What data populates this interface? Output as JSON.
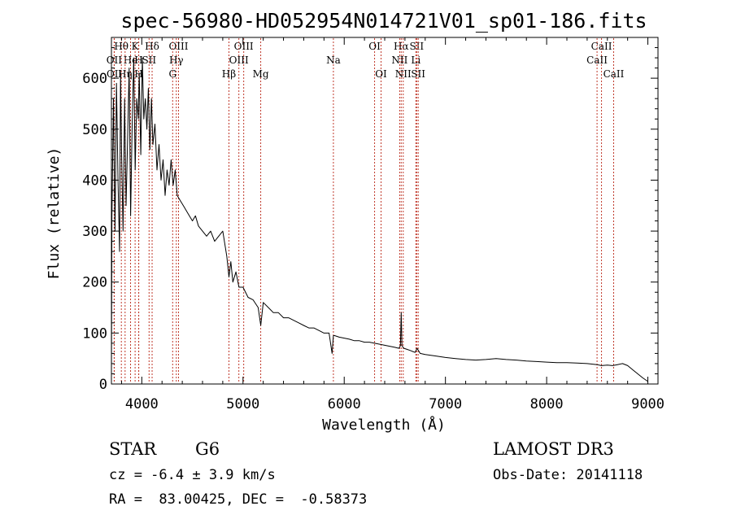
{
  "chart_data": {
    "type": "line",
    "title": "spec-56980-HD052954N014721V01_sp01-186.fits",
    "xlabel": "Wavelength (Å)",
    "ylabel": "Flux (relative)",
    "xlim": [
      3700,
      9100
    ],
    "ylim": [
      0,
      680
    ],
    "grid": false,
    "x_ticks": [
      {
        "value": 4000,
        "label": "4000"
      },
      {
        "value": 5000,
        "label": "5000"
      },
      {
        "value": 6000,
        "label": "6000"
      },
      {
        "value": 7000,
        "label": "7000"
      },
      {
        "value": 8000,
        "label": "8000"
      },
      {
        "value": 9000,
        "label": "9000"
      }
    ],
    "y_ticks": [
      {
        "value": 0,
        "label": "0"
      },
      {
        "value": 100,
        "label": "100"
      },
      {
        "value": 200,
        "label": "200"
      },
      {
        "value": 300,
        "label": "300"
      },
      {
        "value": 400,
        "label": "400"
      },
      {
        "value": 500,
        "label": "500"
      },
      {
        "value": 600,
        "label": "600"
      }
    ],
    "series": [
      {
        "name": "spectrum",
        "x": [
          3700,
          3705,
          3720,
          3735,
          3750,
          3765,
          3780,
          3790,
          3800,
          3815,
          3830,
          3845,
          3860,
          3875,
          3890,
          3905,
          3920,
          3935,
          3950,
          3965,
          3975,
          3990,
          4005,
          4020,
          4035,
          4050,
          4065,
          4080,
          4095,
          4110,
          4130,
          4150,
          4170,
          4190,
          4210,
          4230,
          4250,
          4270,
          4290,
          4310,
          4330,
          4350,
          4380,
          4410,
          4440,
          4470,
          4500,
          4530,
          4560,
          4600,
          4640,
          4680,
          4720,
          4760,
          4800,
          4840,
          4861,
          4880,
          4900,
          4930,
          4960,
          5000,
          5050,
          5100,
          5150,
          5175,
          5200,
          5250,
          5300,
          5350,
          5400,
          5450,
          5500,
          5550,
          5600,
          5650,
          5700,
          5750,
          5800,
          5850,
          5880,
          5893,
          5905,
          5950,
          6000,
          6050,
          6100,
          6150,
          6200,
          6250,
          6300,
          6350,
          6400,
          6450,
          6500,
          6540,
          6555,
          6563,
          6570,
          6590,
          6620,
          6650,
          6700,
          6720,
          6750,
          6800,
          6900,
          7000,
          7100,
          7200,
          7300,
          7400,
          7500,
          7600,
          7700,
          7800,
          7900,
          8000,
          8100,
          8200,
          8300,
          8400,
          8500,
          8540,
          8600,
          8650,
          8700,
          8750,
          8800,
          8850,
          8900,
          8950,
          9000
        ],
        "y": [
          10,
          330,
          560,
          300,
          590,
          400,
          260,
          610,
          460,
          300,
          560,
          350,
          480,
          620,
          330,
          510,
          640,
          420,
          560,
          520,
          610,
          450,
          640,
          520,
          560,
          500,
          580,
          460,
          560,
          470,
          510,
          420,
          470,
          400,
          440,
          370,
          420,
          390,
          440,
          390,
          420,
          370,
          360,
          350,
          340,
          330,
          320,
          330,
          310,
          300,
          290,
          300,
          280,
          290,
          300,
          250,
          210,
          240,
          200,
          220,
          190,
          190,
          170,
          165,
          150,
          115,
          160,
          150,
          140,
          140,
          130,
          130,
          125,
          120,
          115,
          110,
          110,
          105,
          100,
          100,
          60,
          95,
          95,
          92,
          90,
          88,
          85,
          85,
          82,
          82,
          80,
          78,
          76,
          74,
          72,
          70,
          75,
          140,
          75,
          70,
          68,
          66,
          62,
          70,
          60,
          58,
          55,
          52,
          50,
          48,
          47,
          48,
          50,
          48,
          47,
          45,
          44,
          43,
          42,
          42,
          41,
          40,
          38,
          36,
          37,
          36,
          38,
          40,
          36,
          28,
          20,
          12,
          5
        ]
      }
    ],
    "line_markers": [
      {
        "label": "Hθ",
        "x": 3798,
        "row": 1
      },
      {
        "label": "OII",
        "x": 3727,
        "row": 2
      },
      {
        "label": "OII",
        "x": 3729,
        "row": 3
      },
      {
        "label": "He",
        "x": 3889,
        "row": 2
      },
      {
        "label": "Hη",
        "x": 3835,
        "row": 3
      },
      {
        "label": "K",
        "x": 3934,
        "row": 1
      },
      {
        "label": "H",
        "x": 3969,
        "row": 2
      },
      {
        "label": "H",
        "x": 3970,
        "row": 3
      },
      {
        "label": "Hδ",
        "x": 4102,
        "row": 1
      },
      {
        "label": "SII",
        "x": 4072,
        "row": 2
      },
      {
        "label": "OIII",
        "x": 4363,
        "row": 1
      },
      {
        "label": "Hγ",
        "x": 4341,
        "row": 2
      },
      {
        "label": "G",
        "x": 4305,
        "row": 3
      },
      {
        "label": "OIII",
        "x": 5007,
        "row": 1
      },
      {
        "label": "OIII",
        "x": 4959,
        "row": 2
      },
      {
        "label": "Hβ",
        "x": 4861,
        "row": 3
      },
      {
        "label": "Mg",
        "x": 5175,
        "row": 3
      },
      {
        "label": "Na",
        "x": 5893,
        "row": 2
      },
      {
        "label": "OI",
        "x": 6300,
        "row": 1
      },
      {
        "label": "OI",
        "x": 6364,
        "row": 3
      },
      {
        "label": "Hα",
        "x": 6563,
        "row": 1
      },
      {
        "label": "SII",
        "x": 6716,
        "row": 1
      },
      {
        "label": "NII",
        "x": 6548,
        "row": 2
      },
      {
        "label": "Li",
        "x": 6708,
        "row": 2
      },
      {
        "label": "NII",
        "x": 6583,
        "row": 3
      },
      {
        "label": "SII",
        "x": 6731,
        "row": 3
      },
      {
        "label": "CaII",
        "x": 8542,
        "row": 1
      },
      {
        "label": "CaII",
        "x": 8498,
        "row": 2
      },
      {
        "label": "CaII",
        "x": 8662,
        "row": 3
      }
    ],
    "annotations": {
      "object_class": "STAR",
      "subclass": "G6",
      "survey": "LAMOST DR3",
      "redshift_line": "cz = -6.4 ± 3.9 km/s",
      "obs_date": "Obs-Date: 20141118",
      "coords": "RA =  83.00425, DEC =  -0.58373"
    }
  }
}
